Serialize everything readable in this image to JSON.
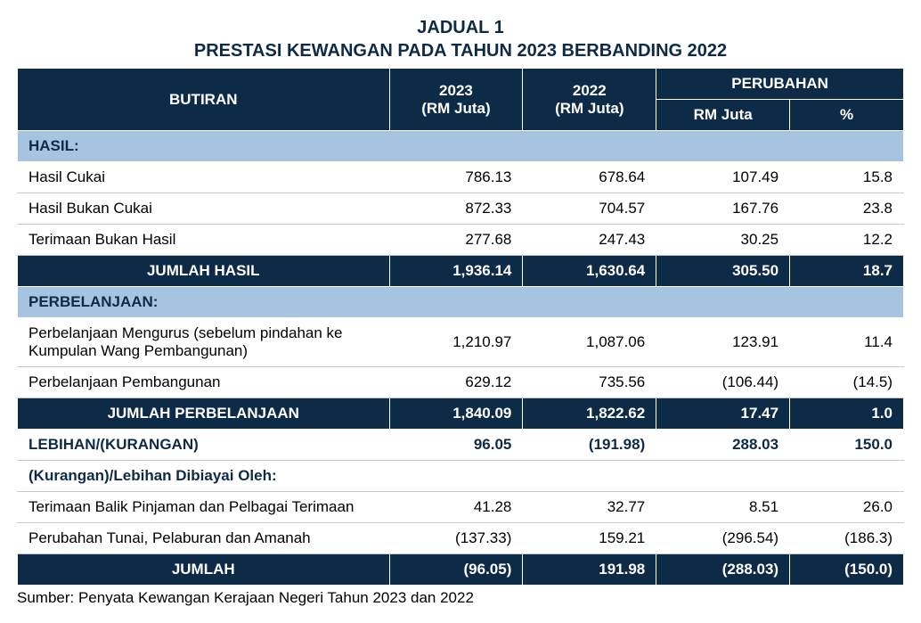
{
  "title": {
    "line1": "JADUAL 1",
    "line2": "PRESTASI KEWANGAN PADA TAHUN 2023 BERBANDING 2022"
  },
  "header": {
    "butiran": "BUTIRAN",
    "y2023_l1": "2023",
    "y2023_l2": "(RM Juta)",
    "y2022_l1": "2022",
    "y2022_l2": "(RM Juta)",
    "perubahan": "PERUBAHAN",
    "rmjuta": "RM Juta",
    "pct": "%"
  },
  "sections": {
    "hasil": "HASIL:",
    "perbelanjaan": "PERBELANJAAN:"
  },
  "rows": {
    "r1": {
      "label": "Hasil Cukai",
      "y1": "786.13",
      "y2": "678.64",
      "rm": "107.49",
      "pct": "15.8"
    },
    "r2": {
      "label": "Hasil Bukan Cukai",
      "y1": "872.33",
      "y2": "704.57",
      "rm": "167.76",
      "pct": "23.8"
    },
    "r3": {
      "label": "Terimaan Bukan Hasil",
      "y1": "277.68",
      "y2": "247.43",
      "rm": "30.25",
      "pct": "12.2"
    },
    "t1": {
      "label": "JUMLAH HASIL",
      "y1": "1,936.14",
      "y2": "1,630.64",
      "rm": "305.50",
      "pct": "18.7"
    },
    "r4": {
      "label": "Perbelanjaan Mengurus (sebelum pindahan ke Kumpulan Wang Pembangunan)",
      "y1": "1,210.97",
      "y2": "1,087.06",
      "rm": "123.91",
      "pct": "11.4"
    },
    "r5": {
      "label": "Perbelanjaan Pembangunan",
      "y1": "629.12",
      "y2": "735.56",
      "rm": "(106.44)",
      "pct": "(14.5)"
    },
    "t2": {
      "label": "JUMLAH PERBELANJAAN",
      "y1": "1,840.09",
      "y2": "1,822.62",
      "rm": "17.47",
      "pct": "1.0"
    },
    "b1": {
      "label": "LEBIHAN/(KURANGAN)",
      "y1": "96.05",
      "y2": "(191.98)",
      "rm": "288.03",
      "pct": "150.0"
    },
    "b2": {
      "label": "(Kurangan)/Lebihan Dibiayai Oleh:"
    },
    "r6": {
      "label": "Terimaan Balik Pinjaman dan Pelbagai Terimaan",
      "y1": "41.28",
      "y2": "32.77",
      "rm": "8.51",
      "pct": "26.0"
    },
    "r7": {
      "label": "Perubahan Tunai, Pelaburan dan Amanah",
      "y1": "(137.33)",
      "y2": "159.21",
      "rm": "(296.54)",
      "pct": "(186.3)"
    },
    "t3": {
      "label": "JUMLAH",
      "y1": "(96.05)",
      "y2": "191.98",
      "rm": "(288.03)",
      "pct": "(150.0)"
    }
  },
  "source": "Sumber: Penyata Kewangan Kerajaan Negeri Tahun 2023 dan 2022",
  "colors": {
    "header_bg": "#0d2b47",
    "section_bg": "#a6c4df",
    "text_dark": "#0d2b47"
  }
}
